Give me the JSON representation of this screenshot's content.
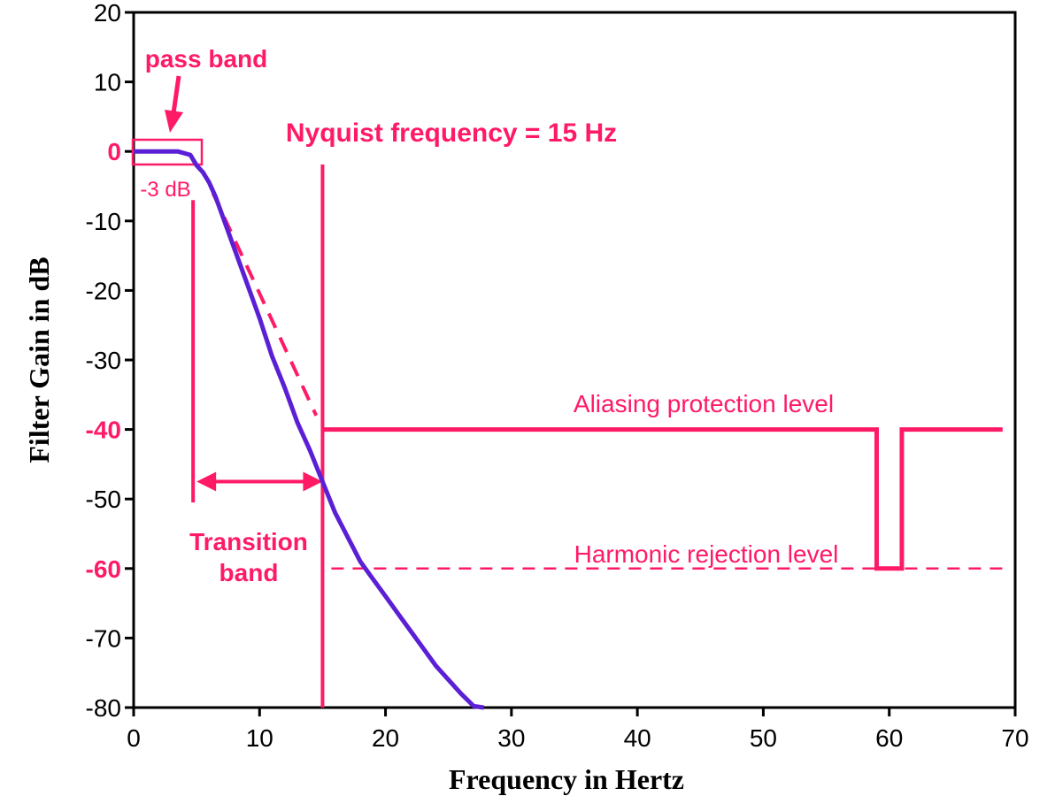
{
  "chart_data": {
    "type": "line",
    "xlabel": "Frequency in Hertz",
    "ylabel": "Filter Gain in dB",
    "xlim": [
      0,
      70
    ],
    "ylim": [
      -80,
      20
    ],
    "x_ticks": [
      0,
      10,
      20,
      30,
      40,
      50,
      60,
      70
    ],
    "y_ticks": [
      20,
      10,
      0,
      -10,
      -20,
      -30,
      -40,
      -50,
      -60,
      -70,
      -80
    ],
    "highlighted_y_ticks": [
      0,
      -40,
      -60
    ],
    "colors": {
      "response": "#5b1fd6",
      "annotation": "#ff1a66",
      "axis": "#000000"
    },
    "grid": false,
    "series": [
      {
        "x": [
          0,
          2,
          3.5,
          4.5,
          5.0,
          5.5,
          6.0,
          6.5,
          7.0,
          8,
          9,
          10,
          11,
          12,
          13,
          14,
          15,
          16,
          17,
          18,
          19,
          20,
          21,
          22,
          23,
          24,
          25,
          26,
          27,
          27.8
        ],
        "y": [
          0,
          0,
          0,
          -0.5,
          -2,
          -3,
          -4.5,
          -6.5,
          -9,
          -14,
          -19,
          -24,
          -29.5,
          -34,
          -39,
          -43,
          -47.5,
          -52,
          -55.5,
          -59,
          -61.5,
          -64,
          -66.5,
          -69,
          -71.5,
          -74,
          -76,
          -78,
          -79.8,
          -80
        ]
      }
    ],
    "annotations": {
      "pass_band": "pass band",
      "minus3db": "-3 dB",
      "nyquist": "Nyquist frequency = 15 Hz",
      "aliasing": "Aliasing protection level",
      "harmonic": "Harmonic rejection level",
      "transition_1": "Transition",
      "transition_2": "band"
    },
    "annotation_data": {
      "nyquist_hz": 15,
      "aliasing_level_db": -40,
      "harmonic_level_db": -60,
      "harmonic_notch_hz": [
        59,
        61
      ],
      "transition_band_hz": [
        5,
        15
      ]
    }
  }
}
